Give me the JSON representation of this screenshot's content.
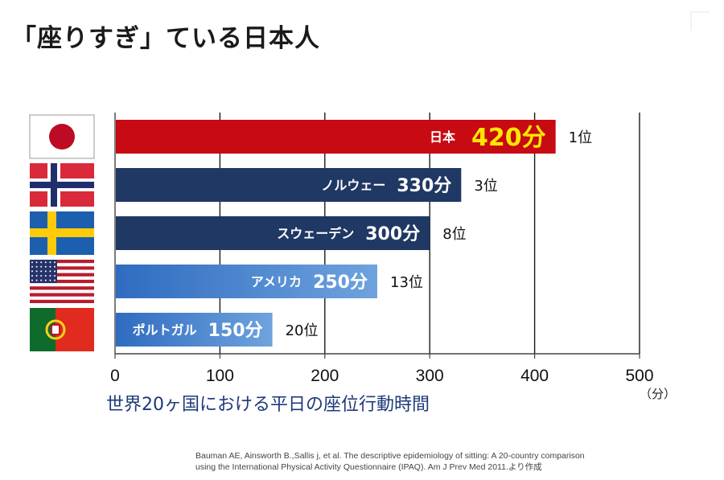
{
  "page": {
    "title": "「座りすぎ」ている日本人",
    "subtitle": "世界20ヶ国における平日の座位行動時間",
    "unit": "（分）",
    "citation_line1": "Bauman AE, Ainsworth B.,Sallis j, et al. The descriptive epidemiology of sitting: A 20-country comparison",
    "citation_line2": "using the International Physical Activity Questionnaire (IPAQ).  Am J Prev Med 2011.より作成"
  },
  "chart_data": {
    "type": "bar",
    "orientation": "horizontal",
    "title": "",
    "xlabel": "",
    "ylabel": "",
    "xlim": [
      0,
      500
    ],
    "x_ticks": [
      0,
      100,
      200,
      300,
      400,
      500
    ],
    "grid": true,
    "categories": [
      "日本",
      "ノルウェー",
      "スウェーデン",
      "アメリカ",
      "ポルトガル"
    ],
    "values": [
      420,
      330,
      300,
      250,
      150
    ],
    "value_labels": [
      "420分",
      "330分",
      "300分",
      "250分",
      "150分"
    ],
    "ranks": [
      "1位",
      "3位",
      "8位",
      "13位",
      "20位"
    ],
    "flags": [
      "japan-flag",
      "norway-flag",
      "sweden-flag",
      "usa-flag",
      "portugal-flag"
    ],
    "colors": [
      "#c80a12",
      "#1f3864",
      "#1f3864",
      "#3d7cc8",
      "#3d7cc8"
    ],
    "highlight_value_color": "#ffe800"
  }
}
